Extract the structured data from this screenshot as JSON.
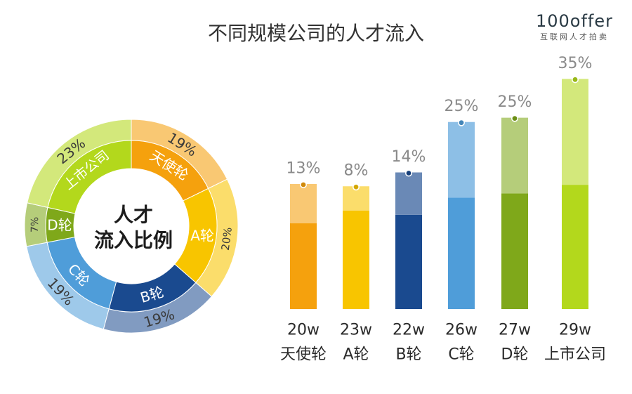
{
  "header": {
    "title": "不同规模公司的人才流入",
    "logo_text": "100offer",
    "logo_sub": "互联网人才拍卖"
  },
  "colors": {
    "angel": "#F5A10D",
    "a": "#F8C500",
    "b": "#1A4A8F",
    "c": "#4F9DD9",
    "d": "#7FA81A",
    "listed": "#B3D81C"
  },
  "chart_data": [
    {
      "type": "pie",
      "title": "人才流入比例",
      "center_lines": [
        "人才",
        "流入比例"
      ],
      "categories": [
        "天使轮",
        "A轮",
        "B轮",
        "C轮",
        "D轮",
        "上市公司"
      ],
      "values": [
        19,
        20,
        19,
        19,
        7,
        23
      ],
      "labels": [
        "19%",
        "20%",
        "19%",
        "19%",
        "7%",
        "23%"
      ]
    },
    {
      "type": "bar",
      "categories": [
        "天使轮",
        "A轮",
        "B轮",
        "C轮",
        "D轮",
        "上市公司"
      ],
      "values": [
        13,
        8,
        14,
        25,
        25,
        35
      ],
      "value_labels": [
        "13%",
        "8%",
        "14%",
        "25%",
        "25%",
        "35%"
      ],
      "base_values": [
        "20w",
        "23w",
        "22w",
        "26w",
        "27w",
        "29w"
      ]
    }
  ]
}
